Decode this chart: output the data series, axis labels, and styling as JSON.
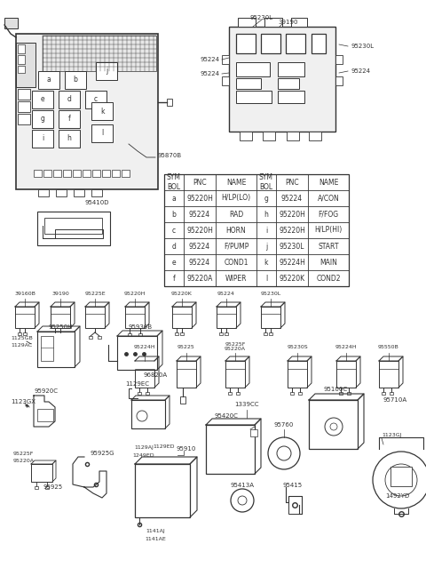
{
  "background_color": "#ffffff",
  "line_color": "#333333",
  "table_headers": [
    "SYM\nBOL",
    "PNC",
    "NAME",
    "SYM\nBOL",
    "PNC",
    "NAME"
  ],
  "table_rows": [
    [
      "a",
      "95220H",
      "H/LP(LO)",
      "g",
      "95224",
      "A/CON"
    ],
    [
      "b",
      "95224",
      "RAD",
      "h",
      "95220H",
      "F/FOG"
    ],
    [
      "c",
      "95220H",
      "HORN",
      "i",
      "95220H",
      "H/LP(HI)"
    ],
    [
      "d",
      "95224",
      "F/PUMP",
      "j",
      "95230L",
      "START"
    ],
    [
      "e",
      "95224",
      "COND1",
      "k",
      "95224H",
      "MAIN"
    ],
    [
      "f",
      "95220A",
      "WIPER",
      "l",
      "95220K",
      "COND2"
    ]
  ],
  "row1_labels": [
    "39160B",
    "39190",
    "95225E",
    "95220H",
    "95220K",
    "95224",
    "95230L"
  ],
  "row2_labels": [
    "95224H",
    "95225",
    "95225F\n95220A",
    "95230S",
    "95224H",
    "95550B"
  ],
  "fs_small": 5.0,
  "fs_med": 5.8,
  "fs_table": 6.0
}
